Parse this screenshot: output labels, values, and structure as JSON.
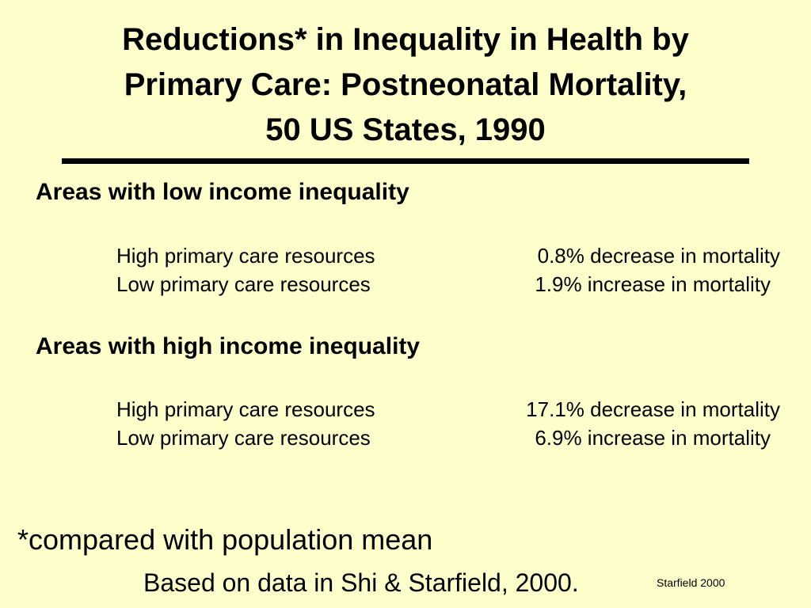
{
  "title": {
    "lines": [
      "Reductions* in Inequality in Health by",
      "Primary Care:  Postneonatal Mortality,",
      "50 US States, 1990"
    ]
  },
  "sections": [
    {
      "heading": "Areas with low income inequality",
      "rows": [
        {
          "resource": "High primary care resources",
          "effect": "0.8% decrease in mortality"
        },
        {
          "resource": "Low primary care resources",
          "effect": "1.9% increase in mortality"
        }
      ]
    },
    {
      "heading": "Areas with high income inequality",
      "rows": [
        {
          "resource": "High primary care resources",
          "effect": "17.1% decrease in mortality"
        },
        {
          "resource": "Low primary care resources",
          "effect": "6.9% increase in mortality"
        }
      ]
    }
  ],
  "footnote": "*compared with population mean",
  "source": "Based on data in Shi & Starfield, 2000.",
  "credit": "Starfield 2000",
  "colors": {
    "background": "#FFFFCC",
    "text": "#000000"
  }
}
